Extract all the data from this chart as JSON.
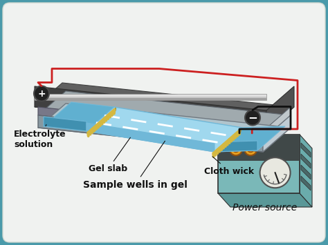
{
  "bg_teal": "#4a9aaa",
  "bg_corner": "#3a7a8a",
  "panel_white": "#f0f2f0",
  "panel_edge": "#d0d8d0",
  "title_power": "Power source",
  "label_gel_slab": "Gel slab",
  "label_sample_wells": "Sample wells in gel",
  "label_cloth_wick": "Cloth wick",
  "label_electrolyte": "Electrolyte\nsolution",
  "label_plus": "+",
  "label_minus": "−",
  "gel_blue": "#a0d8ee",
  "gel_edge": "#70b8d8",
  "buffer_blue": "#60b0d0",
  "cloth_yellow": "#d4b840",
  "cloth_dark": "#a08020",
  "tray_top_color": "#b8c8d0",
  "tray_side_dark": "#606870",
  "tray_side_mid": "#808890",
  "tray_side_light": "#a8b8c0",
  "base_top": "#909898",
  "base_side_dark": "#505858",
  "base_side_light": "#b0b8c0",
  "base_bottom_dark": "#383838",
  "base_bottom_mid": "#888888",
  "base_bottom_light": "#c0c0c0",
  "ps_front": "#7ab8b8",
  "ps_top_face": "#5a9898",
  "ps_right_face": "#6aacac",
  "ps_border": "#303030",
  "ps_dark_panel": "#404848",
  "knob_color": "#e8a020",
  "knob_edge": "#905010",
  "meter_face": "#e8e8e0",
  "wire_black": "#101010",
  "wire_red": "#cc2020",
  "electrode_dark": "#202020",
  "electrode_edge": "#484848",
  "label_color": "#101010",
  "fs_labels": 9,
  "fs_title": 10,
  "fs_power": 10
}
